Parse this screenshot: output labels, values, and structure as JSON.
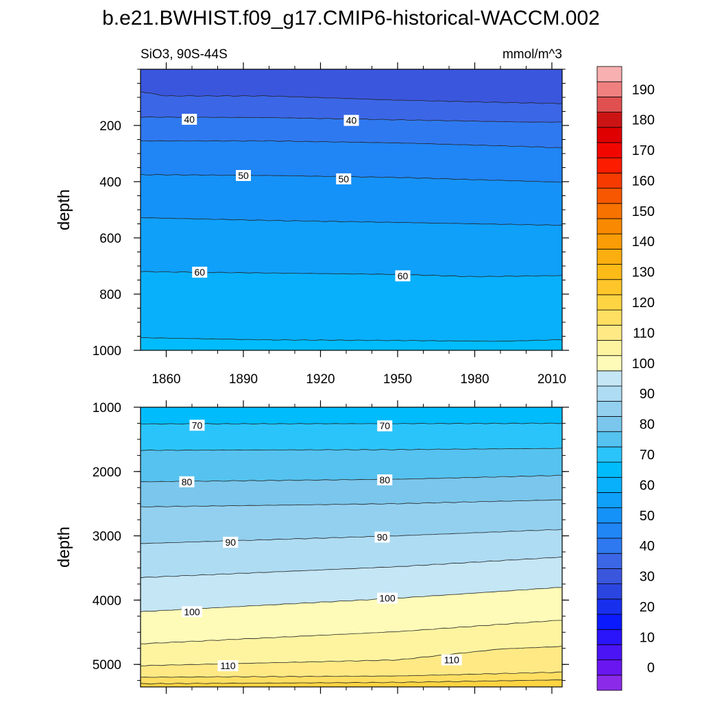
{
  "title": "b.e21.BWHIST.f09_g17.CMIP6-historical-WACCM.002",
  "chart_data": [
    {
      "type": "contour",
      "panel": "upper",
      "left_label": "SiO3, 90S-44S",
      "right_label": "mmol/m^3",
      "xlabel": "",
      "ylabel": "depth",
      "xlim": [
        1850,
        2014
      ],
      "ylim": [
        1000,
        0
      ],
      "xticks": [
        "1860",
        "1890",
        "1920",
        "1950",
        "1980",
        "2010"
      ],
      "xtick_values": [
        1860,
        1890,
        1920,
        1950,
        1980,
        2010
      ],
      "yticks": [
        "200",
        "400",
        "600",
        "800",
        "1000"
      ],
      "ytick_values": [
        200,
        400,
        600,
        800,
        1000
      ],
      "contours": [
        {
          "level": 35,
          "depths": [
            [
              1850,
              80
            ],
            [
              1860,
              95
            ],
            [
              1900,
              95
            ],
            [
              1950,
              110
            ],
            [
              1990,
              118
            ],
            [
              2014,
              122
            ]
          ]
        },
        {
          "level": 40,
          "depths": [
            [
              1850,
              170
            ],
            [
              1900,
              172
            ],
            [
              1950,
              180
            ],
            [
              2000,
              188
            ],
            [
              2014,
              188
            ]
          ]
        },
        {
          "level": 45,
          "depths": [
            [
              1850,
              255
            ],
            [
              1900,
              255
            ],
            [
              1950,
              262
            ],
            [
              2000,
              275
            ],
            [
              2014,
              280
            ]
          ]
        },
        {
          "level": 50,
          "depths": [
            [
              1850,
              375
            ],
            [
              1900,
              378
            ],
            [
              1950,
              385
            ],
            [
              2000,
              398
            ],
            [
              2014,
              402
            ]
          ]
        },
        {
          "level": 55,
          "depths": [
            [
              1850,
              528
            ],
            [
              1900,
              538
            ],
            [
              1950,
              545
            ],
            [
              2000,
              553
            ],
            [
              2014,
              555
            ]
          ]
        },
        {
          "level": 60,
          "depths": [
            [
              1850,
              720
            ],
            [
              1900,
              725
            ],
            [
              1950,
              730
            ],
            [
              1980,
              738
            ],
            [
              2014,
              734
            ]
          ]
        },
        {
          "level": 65,
          "depths": [
            [
              1850,
              955
            ],
            [
              1900,
              963
            ],
            [
              1950,
              965
            ],
            [
              1990,
              968
            ],
            [
              2014,
              962
            ]
          ]
        }
      ],
      "contour_labels": [
        {
          "text": "40",
          "x": 1869,
          "depth": 178
        },
        {
          "text": "40",
          "x": 1932,
          "depth": 182
        },
        {
          "text": "50",
          "x": 1890,
          "depth": 378
        },
        {
          "text": "50",
          "x": 1929,
          "depth": 390
        },
        {
          "text": "60",
          "x": 1873,
          "depth": 722
        },
        {
          "text": "60",
          "x": 1952,
          "depth": 735
        }
      ]
    },
    {
      "type": "contour",
      "panel": "lower",
      "xlabel": "",
      "ylabel": "depth",
      "xlim": [
        1850,
        2014
      ],
      "ylim": [
        5350,
        1000
      ],
      "yticks": [
        "1000",
        "2000",
        "3000",
        "4000",
        "5000"
      ],
      "ytick_values": [
        1000,
        2000,
        3000,
        4000,
        5000
      ],
      "contours": [
        {
          "level": 70,
          "depths": [
            [
              1850,
              1260
            ],
            [
              1950,
              1255
            ],
            [
              2014,
              1250
            ]
          ]
        },
        {
          "level": 75,
          "depths": [
            [
              1850,
              1670
            ],
            [
              1950,
              1660
            ],
            [
              2014,
              1640
            ]
          ]
        },
        {
          "level": 80,
          "depths": [
            [
              1850,
              2160
            ],
            [
              1950,
              2120
            ],
            [
              2014,
              2060
            ]
          ]
        },
        {
          "level": 85,
          "depths": [
            [
              1850,
              2550
            ],
            [
              1950,
              2500
            ],
            [
              2014,
              2440
            ]
          ]
        },
        {
          "level": 90,
          "depths": [
            [
              1850,
              3120
            ],
            [
              1950,
              3000
            ],
            [
              2014,
              2900
            ]
          ]
        },
        {
          "level": 95,
          "depths": [
            [
              1850,
              3650
            ],
            [
              1950,
              3480
            ],
            [
              2014,
              3330
            ]
          ]
        },
        {
          "level": 100,
          "depths": [
            [
              1850,
              4180
            ],
            [
              1950,
              3970
            ],
            [
              2014,
              3800
            ]
          ]
        },
        {
          "level": 105,
          "depths": [
            [
              1850,
              4680
            ],
            [
              1950,
              4490
            ],
            [
              2014,
              4310
            ]
          ]
        },
        {
          "level": 110,
          "depths": [
            [
              1850,
              5020
            ],
            [
              1950,
              4930
            ],
            [
              1990,
              4760
            ],
            [
              2014,
              4720
            ]
          ]
        },
        {
          "level": 115,
          "depths": [
            [
              1850,
              5200
            ],
            [
              1950,
              5180
            ],
            [
              2014,
              5120
            ]
          ]
        },
        {
          "level": 120,
          "depths": [
            [
              1850,
              5300
            ],
            [
              1950,
              5280
            ],
            [
              2014,
              5240
            ]
          ]
        }
      ],
      "contour_labels": [
        {
          "text": "70",
          "x": 1872,
          "depth": 1280
        },
        {
          "text": "70",
          "x": 1945,
          "depth": 1290
        },
        {
          "text": "80",
          "x": 1868,
          "depth": 2160
        },
        {
          "text": "80",
          "x": 1945,
          "depth": 2130
        },
        {
          "text": "90",
          "x": 1885,
          "depth": 3100
        },
        {
          "text": "90",
          "x": 1944,
          "depth": 3020
        },
        {
          "text": "100",
          "x": 1870,
          "depth": 4180
        },
        {
          "text": "100",
          "x": 1946,
          "depth": 3970
        },
        {
          "text": "110",
          "x": 1884,
          "depth": 5020
        },
        {
          "text": "110",
          "x": 1971,
          "depth": 4930
        }
      ]
    }
  ],
  "colorbar": {
    "labels": [
      "0",
      "10",
      "20",
      "30",
      "40",
      "50",
      "60",
      "70",
      "80",
      "90",
      "100",
      "110",
      "120",
      "130",
      "140",
      "150",
      "160",
      "170",
      "180",
      "190"
    ],
    "min": -5,
    "max": 195,
    "step": 5,
    "colors": [
      "#8b2ae8",
      "#6a16f0",
      "#4a14f5",
      "#2a14fa",
      "#0a1afc",
      "#1830ee",
      "#2b45e0",
      "#3a56dd",
      "#3b66e6",
      "#2f79f0",
      "#2085f5",
      "#1592f8",
      "#0fa0fa",
      "#08b0fc",
      "#00bcfc",
      "#2bc4fa",
      "#55c2ef",
      "#7ac6ec",
      "#93d0ef",
      "#aedcf3",
      "#c4e6f5",
      "#fefbb8",
      "#fef4a0",
      "#fee985",
      "#fedf62",
      "#fed442",
      "#fec62a",
      "#fdbb18",
      "#fbae10",
      "#fa9c05",
      "#f98900",
      "#f87200",
      "#f65700",
      "#f63a00",
      "#fc1c00",
      "#f20700",
      "#df0000",
      "#cc1414",
      "#e05050",
      "#f08080",
      "#f9b0b0"
    ]
  }
}
